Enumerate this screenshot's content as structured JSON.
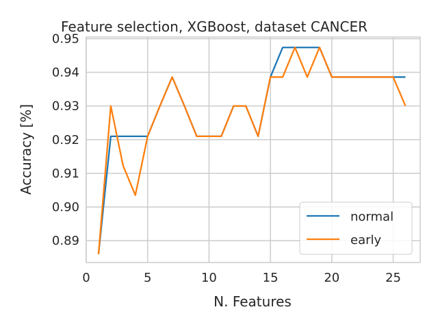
{
  "chart_data": {
    "type": "line",
    "title": "Feature selection, XGBoost, dataset CANCER",
    "xlabel": "N. Features",
    "ylabel": "Accuracy [%]",
    "xlim": [
      0,
      27.2
    ],
    "ylim": [
      0.8835,
      0.9505
    ],
    "xticks": [
      0,
      5,
      10,
      15,
      20,
      25
    ],
    "yticks": [
      0.89,
      0.9,
      0.91,
      0.92,
      0.93,
      0.94,
      0.95
    ],
    "grid": true,
    "legend_position": "lower-right",
    "x": [
      1,
      2,
      3,
      4,
      5,
      6,
      7,
      8,
      9,
      10,
      11,
      12,
      13,
      14,
      15,
      16,
      17,
      18,
      19,
      20,
      21,
      22,
      23,
      24,
      25,
      26
    ],
    "series": [
      {
        "name": "normal",
        "color": "#1f77b4",
        "values": [
          0.886,
          0.921,
          0.921,
          0.921,
          0.921,
          0.93,
          0.9386,
          0.93,
          0.921,
          0.921,
          0.921,
          0.93,
          0.93,
          0.921,
          0.9386,
          0.9474,
          0.9474,
          0.9474,
          0.9474,
          0.9386,
          0.9386,
          0.9386,
          0.9386,
          0.9386,
          0.9386,
          0.9386
        ]
      },
      {
        "name": "early",
        "color": "#ff7f0e",
        "values": [
          0.886,
          0.93,
          0.9123,
          0.9035,
          0.921,
          0.93,
          0.9386,
          0.93,
          0.921,
          0.921,
          0.921,
          0.93,
          0.93,
          0.921,
          0.9386,
          0.9386,
          0.9474,
          0.9386,
          0.9474,
          0.9386,
          0.9386,
          0.9386,
          0.9386,
          0.9386,
          0.9386,
          0.93
        ]
      }
    ]
  }
}
